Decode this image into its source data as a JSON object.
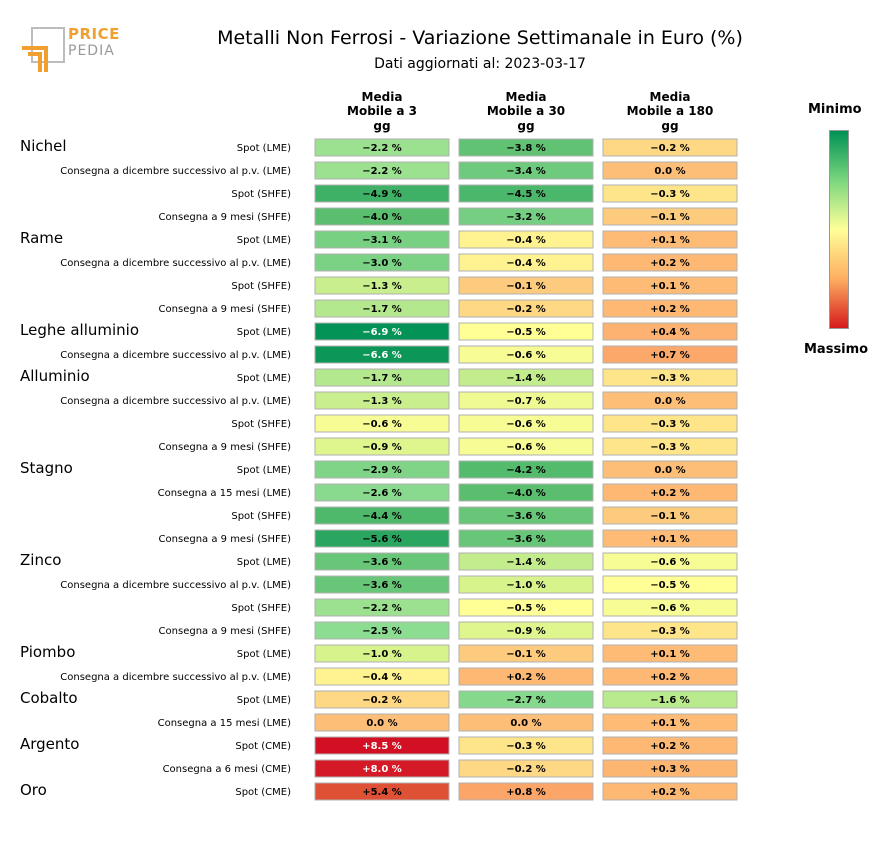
{
  "header": {
    "title": "Metalli Non Ferrosi - Variazione Settimanale in Euro (%)",
    "subtitle": "Dati aggiornati al: 2023-03-17",
    "logo_text_top": "PRICE",
    "logo_text_bottom": "PEDIA"
  },
  "legend": {
    "min_label": "Minimo",
    "max_label": "Massimo",
    "colors": [
      "#009155",
      "#7ad67d",
      "#ffff99",
      "#fdae61",
      "#d7191c"
    ]
  },
  "chart_data": {
    "type": "heatmap",
    "title": "Metalli Non Ferrosi - Variazione Settimanale in Euro (%)",
    "columns": [
      "Media Mobile a 3 gg",
      "Media Mobile a 30 gg",
      "Media Mobile a 180 gg"
    ],
    "column_lines": [
      [
        "Media",
        "Mobile a 3",
        "gg"
      ],
      [
        "Media",
        "Mobile a 30",
        "gg"
      ],
      [
        "Media",
        "Mobile a 180",
        "gg"
      ]
    ],
    "groups": [
      {
        "name": "Nichel",
        "rows": [
          {
            "label": "Spot (LME)",
            "values": [
              "−2.2 %",
              "−3.8 %",
              "−0.2 %"
            ]
          },
          {
            "label": "Consegna a dicembre successivo al p.v. (LME)",
            "values": [
              "−2.2 %",
              "−3.4 %",
              "0.0 %"
            ]
          },
          {
            "label": "Spot (SHFE)",
            "values": [
              "−4.9 %",
              "−4.5 %",
              "−0.3 %"
            ]
          },
          {
            "label": "Consegna a 9 mesi (SHFE)",
            "values": [
              "−4.0 %",
              "−3.2 %",
              "−0.1 %"
            ]
          }
        ]
      },
      {
        "name": "Rame",
        "rows": [
          {
            "label": "Spot (LME)",
            "values": [
              "−3.1 %",
              "−0.4 %",
              "+0.1 %"
            ]
          },
          {
            "label": "Consegna a dicembre successivo al p.v. (LME)",
            "values": [
              "−3.0 %",
              "−0.4 %",
              "+0.2 %"
            ]
          },
          {
            "label": "Spot (SHFE)",
            "values": [
              "−1.3 %",
              "−0.1 %",
              "+0.1 %"
            ]
          },
          {
            "label": "Consegna a 9 mesi (SHFE)",
            "values": [
              "−1.7 %",
              "−0.2 %",
              "+0.2 %"
            ]
          }
        ]
      },
      {
        "name": "Leghe alluminio",
        "rows": [
          {
            "label": "Spot (LME)",
            "values": [
              "−6.9 %",
              "−0.5 %",
              "+0.4 %"
            ]
          },
          {
            "label": "Consegna a dicembre successivo al p.v. (LME)",
            "values": [
              "−6.6 %",
              "−0.6 %",
              "+0.7 %"
            ]
          }
        ]
      },
      {
        "name": "Alluminio",
        "rows": [
          {
            "label": "Spot (LME)",
            "values": [
              "−1.7 %",
              "−1.4 %",
              "−0.3 %"
            ]
          },
          {
            "label": "Consegna a dicembre successivo al p.v. (LME)",
            "values": [
              "−1.3 %",
              "−0.7 %",
              "0.0 %"
            ]
          },
          {
            "label": "Spot (SHFE)",
            "values": [
              "−0.6 %",
              "−0.6 %",
              "−0.3 %"
            ]
          },
          {
            "label": "Consegna a 9 mesi (SHFE)",
            "values": [
              "−0.9 %",
              "−0.6 %",
              "−0.3 %"
            ]
          }
        ]
      },
      {
        "name": "Stagno",
        "rows": [
          {
            "label": "Spot (LME)",
            "values": [
              "−2.9 %",
              "−4.2 %",
              "0.0 %"
            ]
          },
          {
            "label": "Consegna a 15 mesi (LME)",
            "values": [
              "−2.6 %",
              "−4.0 %",
              "+0.2 %"
            ]
          },
          {
            "label": "Spot (SHFE)",
            "values": [
              "−4.4 %",
              "−3.6 %",
              "−0.1 %"
            ]
          },
          {
            "label": "Consegna a 9 mesi (SHFE)",
            "values": [
              "−5.6 %",
              "−3.6 %",
              "+0.1 %"
            ]
          }
        ]
      },
      {
        "name": "Zinco",
        "rows": [
          {
            "label": "Spot (LME)",
            "values": [
              "−3.6 %",
              "−1.4 %",
              "−0.6 %"
            ]
          },
          {
            "label": "Consegna a dicembre successivo al p.v. (LME)",
            "values": [
              "−3.6 %",
              "−1.0 %",
              "−0.5 %"
            ]
          },
          {
            "label": "Spot (SHFE)",
            "values": [
              "−2.2 %",
              "−0.5 %",
              "−0.6 %"
            ]
          },
          {
            "label": "Consegna a 9 mesi (SHFE)",
            "values": [
              "−2.5 %",
              "−0.9 %",
              "−0.3 %"
            ]
          }
        ]
      },
      {
        "name": "Piombo",
        "rows": [
          {
            "label": "Spot (LME)",
            "values": [
              "−1.0 %",
              "−0.1 %",
              "+0.1 %"
            ]
          },
          {
            "label": "Consegna a dicembre successivo al p.v. (LME)",
            "values": [
              "−0.4 %",
              "+0.2 %",
              "+0.2 %"
            ]
          }
        ]
      },
      {
        "name": "Cobalto",
        "rows": [
          {
            "label": "Spot (LME)",
            "values": [
              "−0.2 %",
              "−2.7 %",
              "−1.6 %"
            ]
          },
          {
            "label": "Consegna a 15 mesi (LME)",
            "values": [
              "0.0 %",
              "0.0 %",
              "+0.1 %"
            ]
          }
        ]
      },
      {
        "name": "Argento",
        "rows": [
          {
            "label": "Spot (CME)",
            "values": [
              "+8.5 %",
              "−0.3 %",
              "+0.2 %"
            ]
          },
          {
            "label": "Consegna a 6 mesi (CME)",
            "values": [
              "+8.0 %",
              "−0.2 %",
              "+0.3 %"
            ]
          }
        ]
      },
      {
        "name": "Oro",
        "rows": [
          {
            "label": "Spot (CME)",
            "values": [
              "+5.4 %",
              "+0.8 %",
              "+0.2 %"
            ]
          }
        ]
      }
    ]
  }
}
